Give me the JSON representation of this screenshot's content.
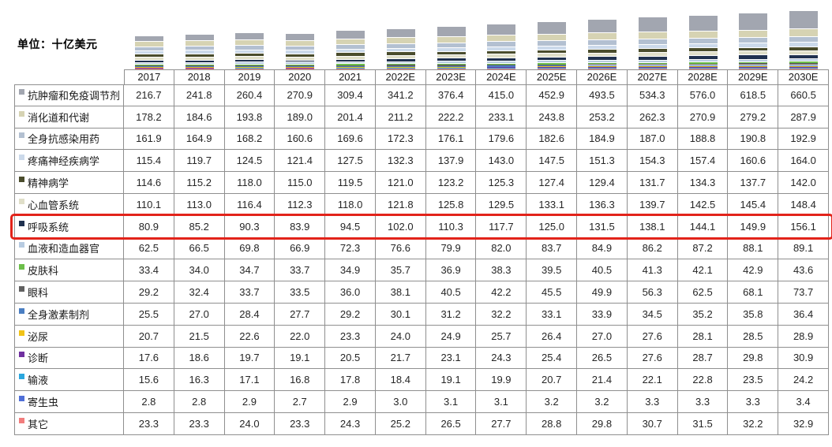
{
  "unit_label": "单位：十亿美元",
  "highlight": {
    "series": "呼吸系统",
    "box_color": "#e2231a"
  },
  "chart_data": {
    "type": "bar",
    "stacked": true,
    "title": "",
    "xlabel": "",
    "ylabel": "",
    "unit": "十亿美元",
    "grid": false,
    "legend_position": "table-left-column",
    "categories": [
      "2017",
      "2018",
      "2019",
      "2020",
      "2021",
      "2022E",
      "2023E",
      "2024E",
      "2025E",
      "2026E",
      "2027E",
      "2028E",
      "2029E",
      "2030E"
    ],
    "series": [
      {
        "name": "抗肿瘤和免疫调节剂",
        "color": "#a2a6b0",
        "highlighted": false,
        "values": [
          216.7,
          241.8,
          260.4,
          270.9,
          309.4,
          341.2,
          376.4,
          415.0,
          452.9,
          493.5,
          534.3,
          576.0,
          618.5,
          660.5
        ]
      },
      {
        "name": "消化道和代谢",
        "color": "#d6d3b3",
        "highlighted": false,
        "values": [
          178.2,
          184.6,
          193.8,
          189.0,
          201.4,
          211.2,
          222.2,
          233.1,
          243.8,
          253.2,
          262.3,
          270.9,
          279.2,
          287.9
        ]
      },
      {
        "name": "全身抗感染用药",
        "color": "#b3c0d1",
        "highlighted": false,
        "values": [
          161.9,
          164.9,
          168.2,
          160.6,
          169.6,
          172.3,
          176.1,
          179.6,
          182.6,
          184.9,
          187.0,
          188.8,
          190.8,
          192.9
        ]
      },
      {
        "name": "疼痛神经疾病学",
        "color": "#cbd9ea",
        "highlighted": false,
        "values": [
          115.4,
          119.7,
          124.5,
          121.4,
          127.5,
          132.3,
          137.9,
          143.0,
          147.5,
          151.3,
          154.3,
          157.4,
          160.6,
          164.0
        ]
      },
      {
        "name": "精神病学",
        "color": "#4a4c2c",
        "highlighted": false,
        "values": [
          114.6,
          115.2,
          118.0,
          115.0,
          119.5,
          121.0,
          123.2,
          125.3,
          127.4,
          129.4,
          131.7,
          134.3,
          137.7,
          142.0
        ]
      },
      {
        "name": "心血管系统",
        "color": "#e0dfc9",
        "highlighted": false,
        "values": [
          110.1,
          113.0,
          116.4,
          112.3,
          118.0,
          121.8,
          125.8,
          129.5,
          133.1,
          136.3,
          139.7,
          142.5,
          145.4,
          148.4
        ]
      },
      {
        "name": "呼吸系统",
        "color": "#20314f",
        "highlighted": true,
        "values": [
          80.9,
          85.2,
          90.3,
          83.9,
          94.5,
          102.0,
          110.3,
          117.7,
          125.0,
          131.5,
          138.1,
          144.1,
          149.9,
          156.1
        ]
      },
      {
        "name": "血液和造血器官",
        "color": "#b7cbe1",
        "highlighted": false,
        "values": [
          62.5,
          66.5,
          69.8,
          66.9,
          72.3,
          76.6,
          79.9,
          82.0,
          83.7,
          84.9,
          86.2,
          87.2,
          88.1,
          89.1
        ]
      },
      {
        "name": "皮肤科",
        "color": "#6cbf4a",
        "highlighted": false,
        "values": [
          33.4,
          34.0,
          34.7,
          33.7,
          34.9,
          35.7,
          36.9,
          38.3,
          39.5,
          40.5,
          41.3,
          42.1,
          42.9,
          43.6
        ]
      },
      {
        "name": "眼科",
        "color": "#606060",
        "highlighted": false,
        "values": [
          29.2,
          32.4,
          33.7,
          33.5,
          36.0,
          38.1,
          40.5,
          42.2,
          45.5,
          49.9,
          56.3,
          62.5,
          68.1,
          73.7
        ]
      },
      {
        "name": "全身激素制剂",
        "color": "#4a7ec2",
        "highlighted": false,
        "values": [
          25.5,
          27.0,
          28.4,
          27.7,
          29.2,
          30.1,
          31.2,
          32.2,
          33.1,
          33.9,
          34.5,
          35.2,
          35.8,
          36.4
        ]
      },
      {
        "name": "泌尿",
        "color": "#f1c318",
        "highlighted": false,
        "values": [
          20.7,
          21.5,
          22.6,
          22.0,
          23.3,
          24.0,
          24.9,
          25.7,
          26.4,
          27.0,
          27.6,
          28.1,
          28.5,
          28.9
        ]
      },
      {
        "name": "诊断",
        "color": "#7030a0",
        "highlighted": false,
        "values": [
          17.6,
          18.6,
          19.7,
          19.1,
          20.5,
          21.7,
          23.1,
          24.3,
          25.4,
          26.5,
          27.6,
          28.7,
          29.8,
          30.9
        ]
      },
      {
        "name": "输液",
        "color": "#2ba7de",
        "highlighted": false,
        "values": [
          15.6,
          16.3,
          17.1,
          16.8,
          17.8,
          18.4,
          19.1,
          19.9,
          20.7,
          21.4,
          22.1,
          22.8,
          23.5,
          24.2
        ]
      },
      {
        "name": "寄生虫",
        "color": "#4f6fd8",
        "highlighted": false,
        "values": [
          2.8,
          2.8,
          2.9,
          2.7,
          2.9,
          3.0,
          3.1,
          3.1,
          3.2,
          3.2,
          3.3,
          3.3,
          3.3,
          3.4
        ]
      },
      {
        "name": "其它",
        "color": "#f27d7d",
        "highlighted": false,
        "values": [
          23.3,
          23.3,
          24.0,
          23.3,
          24.3,
          25.2,
          26.5,
          27.7,
          28.8,
          29.8,
          30.7,
          31.5,
          32.2,
          32.9
        ]
      }
    ]
  }
}
